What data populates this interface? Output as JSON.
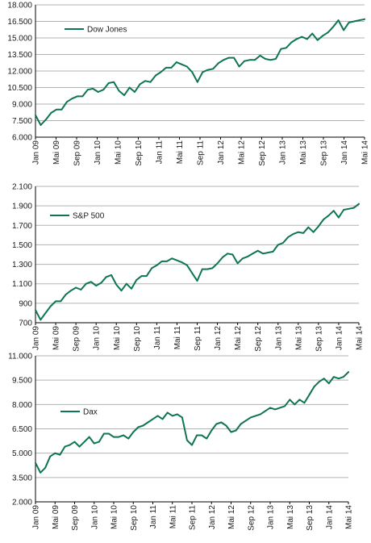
{
  "colors": {
    "series": "#0e7553",
    "grid": "#b3b3b3",
    "axis": "#000000",
    "text": "#1a1a1a"
  },
  "chart_data": [
    {
      "type": "line",
      "title": "",
      "xlabel": "",
      "ylabel": "",
      "legend": {
        "label": "Dow Jones",
        "placement": "top-left"
      },
      "ylim": [
        6000,
        18000
      ],
      "yticks": [
        6000,
        7500,
        9000,
        10500,
        12000,
        13500,
        15000,
        16500,
        18000
      ],
      "ytick_labels": [
        "6.000",
        "7.500",
        "9.000",
        "10.500",
        "12.000",
        "13.500",
        "15.000",
        "16.500",
        "18.000"
      ],
      "xticks": [
        "Jan 09",
        "Mai 09",
        "Sep 09",
        "Jan 10",
        "Mai 10",
        "Sep 10",
        "Jan 11",
        "Mai 11",
        "Sep 11",
        "Jan 12",
        "Mai 12",
        "Sep 12",
        "Jan 13",
        "Mai 13",
        "Sep 13",
        "Jan 14",
        "Mai 14"
      ],
      "grid": "horizontal",
      "series": [
        {
          "name": "Dow Jones",
          "values": [
            8000,
            7100,
            7600,
            8200,
            8500,
            8500,
            9200,
            9500,
            9700,
            9700,
            10300,
            10400,
            10100,
            10300,
            10900,
            11000,
            10200,
            9800,
            10500,
            10100,
            10800,
            11100,
            11000,
            11600,
            11900,
            12300,
            12300,
            12800,
            12600,
            12400,
            11900,
            11000,
            11900,
            12100,
            12200,
            12700,
            13000,
            13200,
            13200,
            12400,
            12900,
            13000,
            13000,
            13400,
            13100,
            13000,
            13100,
            14000,
            14100,
            14600,
            14900,
            15100,
            14900,
            15400,
            14800,
            15200,
            15500,
            16000,
            16600,
            15700,
            16400,
            16500,
            16600,
            16700
          ]
        }
      ]
    },
    {
      "type": "line",
      "title": "",
      "xlabel": "",
      "ylabel": "",
      "legend": {
        "label": "S&P 500",
        "placement": "top-left"
      },
      "ylim": [
        700,
        2100
      ],
      "yticks": [
        700,
        900,
        1100,
        1300,
        1500,
        1700,
        1900,
        2100
      ],
      "ytick_labels": [
        "700",
        "900",
        "1.100",
        "1.300",
        "1.500",
        "1.700",
        "1.900",
        "2.100"
      ],
      "xticks": [
        "Jan 09",
        "Mai 09",
        "Sep 09",
        "Jan 10",
        "Mai 10",
        "Sep 10",
        "Jan 11",
        "Mai 11",
        "Sep 11",
        "Jan 12",
        "Mai 12",
        "Sep 12",
        "Jan 13",
        "Mai 13",
        "Sep 13",
        "Jan 14",
        "Mai 14"
      ],
      "grid": "horizontal",
      "series": [
        {
          "name": "S&P 500",
          "values": [
            830,
            730,
            800,
            870,
            920,
            920,
            990,
            1030,
            1060,
            1040,
            1100,
            1120,
            1080,
            1110,
            1170,
            1190,
            1090,
            1030,
            1100,
            1050,
            1140,
            1180,
            1180,
            1260,
            1290,
            1330,
            1330,
            1360,
            1340,
            1320,
            1290,
            1210,
            1130,
            1250,
            1250,
            1260,
            1310,
            1370,
            1410,
            1400,
            1310,
            1360,
            1380,
            1410,
            1440,
            1410,
            1420,
            1430,
            1500,
            1520,
            1580,
            1610,
            1630,
            1620,
            1680,
            1630,
            1690,
            1760,
            1800,
            1850,
            1780,
            1860,
            1870,
            1880,
            1920
          ]
        }
      ]
    },
    {
      "type": "line",
      "title": "",
      "xlabel": "",
      "ylabel": "",
      "legend": {
        "label": "Dax",
        "placement": "top-left"
      },
      "ylim": [
        2000,
        11000
      ],
      "yticks": [
        2000,
        3500,
        5000,
        6500,
        8000,
        9500,
        11000
      ],
      "ytick_labels": [
        "2.000",
        "3.500",
        "5.000",
        "6.500",
        "8.000",
        "9.500",
        "11.000"
      ],
      "xticks": [
        "Jan 09",
        "Mai 09",
        "Sep 09",
        "Jan 10",
        "Mai 10",
        "Sep 10",
        "Jan 11",
        "Mai 11",
        "Sep 11",
        "Jan 12",
        "Mai 12",
        "Sep 12",
        "Jan 13",
        "Mai 13",
        "Sep 13",
        "Jan 14",
        "Mai 14"
      ],
      "grid": "horizontal",
      "series": [
        {
          "name": "Dax",
          "values": [
            4400,
            3800,
            4100,
            4800,
            5000,
            4900,
            5400,
            5500,
            5700,
            5400,
            5700,
            6000,
            5600,
            5700,
            6200,
            6200,
            6000,
            6000,
            6100,
            5900,
            6300,
            6600,
            6700,
            6900,
            7100,
            7300,
            7100,
            7500,
            7300,
            7400,
            7200,
            5800,
            5500,
            6100,
            6100,
            5900,
            6400,
            6800,
            6900,
            6700,
            6300,
            6400,
            6800,
            7000,
            7200,
            7300,
            7400,
            7600,
            7800,
            7700,
            7800,
            7900,
            8300,
            8000,
            8300,
            8100,
            8600,
            9100,
            9400,
            9600,
            9300,
            9700,
            9600,
            9700,
            10000
          ]
        }
      ]
    }
  ]
}
